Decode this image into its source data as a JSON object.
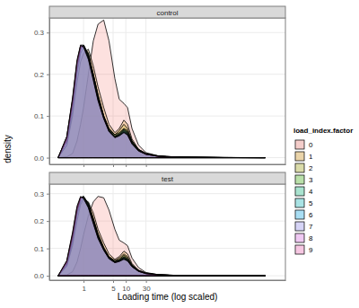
{
  "chart_data": [
    {
      "type": "area",
      "title": "control",
      "y_label": "density",
      "legend_title": "load_index.factor",
      "x": [
        0.25,
        0.4,
        0.55,
        0.7,
        0.85,
        1,
        1.3,
        1.7,
        2.2,
        3,
        4,
        5.5,
        7,
        9,
        11,
        14,
        20,
        30,
        60,
        200,
        2000,
        20000
      ],
      "xlim": [
        0.155,
        60000
      ],
      "xticks": [
        1,
        5,
        10,
        30
      ],
      "ylim": [
        -0.016,
        0.335
      ],
      "yticks": [
        {
          "value": 0,
          "label": "0.0"
        },
        {
          "value": 0.1,
          "label": "0.1"
        },
        {
          "value": 0.2,
          "label": "0.2"
        },
        {
          "value": 0.3,
          "label": "0.3"
        }
      ],
      "log": "x",
      "grid": true,
      "legend": "right",
      "tick_labels": "y",
      "series": [
        {
          "name": "0",
          "color": "#F8766D",
          "values": [
            0,
            0.002,
            0.01,
            0.04,
            0.08,
            0.12,
            0.2,
            0.28,
            0.32,
            0.33,
            0.28,
            0.19,
            0.14,
            0.13,
            0.12,
            0.07,
            0.03,
            0.012,
            0.004,
            0.001,
            0.0003,
            0
          ]
        },
        {
          "name": "1",
          "color": "#D89000",
          "values": [
            0,
            0.03,
            0.1,
            0.18,
            0.23,
            0.25,
            0.26,
            0.22,
            0.17,
            0.12,
            0.08,
            0.06,
            0.07,
            0.09,
            0.08,
            0.045,
            0.02,
            0.01,
            0.004,
            0.001,
            0.0003,
            0
          ]
        },
        {
          "name": "2",
          "color": "#A3A500",
          "values": [
            0,
            0.03,
            0.11,
            0.2,
            0.25,
            0.265,
            0.25,
            0.2,
            0.15,
            0.1,
            0.07,
            0.055,
            0.065,
            0.08,
            0.07,
            0.04,
            0.02,
            0.01,
            0.004,
            0.001,
            0.0003,
            0
          ]
        },
        {
          "name": "3",
          "color": "#39B600",
          "values": [
            0,
            0.04,
            0.12,
            0.21,
            0.26,
            0.27,
            0.25,
            0.2,
            0.15,
            0.1,
            0.07,
            0.055,
            0.06,
            0.07,
            0.065,
            0.04,
            0.02,
            0.009,
            0.003,
            0.001,
            0.0002,
            0
          ]
        },
        {
          "name": "4",
          "color": "#00BF7D",
          "values": [
            0,
            0.04,
            0.13,
            0.22,
            0.26,
            0.27,
            0.245,
            0.2,
            0.15,
            0.1,
            0.068,
            0.052,
            0.058,
            0.068,
            0.062,
            0.038,
            0.018,
            0.009,
            0.003,
            0.001,
            0.0002,
            0
          ]
        },
        {
          "name": "5",
          "color": "#00BFC4",
          "values": [
            0,
            0.04,
            0.13,
            0.22,
            0.265,
            0.27,
            0.245,
            0.195,
            0.145,
            0.098,
            0.066,
            0.05,
            0.056,
            0.066,
            0.06,
            0.036,
            0.018,
            0.008,
            0.003,
            0.001,
            0.0002,
            0
          ]
        },
        {
          "name": "6",
          "color": "#00B0F6",
          "values": [
            0,
            0.045,
            0.135,
            0.225,
            0.265,
            0.268,
            0.24,
            0.19,
            0.14,
            0.096,
            0.065,
            0.05,
            0.055,
            0.064,
            0.058,
            0.035,
            0.017,
            0.008,
            0.003,
            0.001,
            0.0002,
            0
          ]
        },
        {
          "name": "7",
          "color": "#9590FF",
          "values": [
            0,
            0.05,
            0.14,
            0.23,
            0.27,
            0.27,
            0.24,
            0.19,
            0.14,
            0.095,
            0.064,
            0.049,
            0.054,
            0.062,
            0.056,
            0.034,
            0.017,
            0.008,
            0.003,
            0.001,
            0.0002,
            0
          ]
        },
        {
          "name": "8",
          "color": "#E76BF3",
          "values": [
            0,
            0.05,
            0.14,
            0.23,
            0.268,
            0.266,
            0.238,
            0.188,
            0.138,
            0.094,
            0.063,
            0.048,
            0.053,
            0.061,
            0.055,
            0.033,
            0.016,
            0.008,
            0.003,
            0.001,
            0.0002,
            0
          ]
        },
        {
          "name": "9",
          "color": "#FF62BC",
          "values": [
            0,
            0.05,
            0.145,
            0.235,
            0.27,
            0.265,
            0.235,
            0.185,
            0.136,
            0.093,
            0.062,
            0.048,
            0.052,
            0.06,
            0.054,
            0.033,
            0.016,
            0.008,
            0.003,
            0.001,
            0.0002,
            0
          ]
        }
      ]
    },
    {
      "type": "area",
      "title": "test",
      "x_label": "Loading time (log scaled)",
      "x": [
        0.25,
        0.4,
        0.55,
        0.7,
        0.85,
        1,
        1.3,
        1.7,
        2.2,
        3,
        4,
        5.5,
        7,
        9,
        11,
        14,
        20,
        30,
        60,
        200,
        2000,
        20000
      ],
      "xlim": [
        0.155,
        60000
      ],
      "xticks": [
        1,
        5,
        10,
        30
      ],
      "ylim": [
        -0.016,
        0.335
      ],
      "yticks": [
        {
          "value": 0,
          "label": "0.0"
        },
        {
          "value": 0.1,
          "label": "0.1"
        },
        {
          "value": 0.2,
          "label": "0.2"
        },
        {
          "value": 0.3,
          "label": "0.3"
        }
      ],
      "log": "x",
      "grid": true,
      "series": [
        {
          "name": "0",
          "color": "#F8766D",
          "values": [
            0,
            0.003,
            0.015,
            0.05,
            0.1,
            0.15,
            0.22,
            0.27,
            0.29,
            0.285,
            0.24,
            0.17,
            0.13,
            0.12,
            0.11,
            0.065,
            0.03,
            0.012,
            0.004,
            0.001,
            0.0003,
            0
          ]
        },
        {
          "name": "1",
          "color": "#D89000",
          "values": [
            0,
            0.035,
            0.11,
            0.2,
            0.26,
            0.28,
            0.27,
            0.23,
            0.17,
            0.12,
            0.08,
            0.06,
            0.07,
            0.09,
            0.08,
            0.045,
            0.02,
            0.01,
            0.004,
            0.001,
            0.0003,
            0
          ]
        },
        {
          "name": "2",
          "color": "#A3A500",
          "values": [
            0,
            0.035,
            0.12,
            0.22,
            0.27,
            0.285,
            0.265,
            0.21,
            0.155,
            0.105,
            0.07,
            0.055,
            0.065,
            0.08,
            0.07,
            0.04,
            0.02,
            0.01,
            0.004,
            0.001,
            0.0003,
            0
          ]
        },
        {
          "name": "3",
          "color": "#39B600",
          "values": [
            0,
            0.04,
            0.13,
            0.23,
            0.28,
            0.29,
            0.265,
            0.21,
            0.15,
            0.1,
            0.07,
            0.055,
            0.06,
            0.075,
            0.065,
            0.04,
            0.02,
            0.009,
            0.003,
            0.001,
            0.0002,
            0
          ]
        },
        {
          "name": "4",
          "color": "#00BF7D",
          "values": [
            0,
            0.045,
            0.14,
            0.235,
            0.28,
            0.29,
            0.26,
            0.205,
            0.15,
            0.1,
            0.068,
            0.052,
            0.058,
            0.07,
            0.062,
            0.038,
            0.018,
            0.009,
            0.003,
            0.001,
            0.0002,
            0
          ]
        },
        {
          "name": "5",
          "color": "#00BFC4",
          "values": [
            0,
            0.045,
            0.14,
            0.24,
            0.285,
            0.29,
            0.26,
            0.2,
            0.145,
            0.098,
            0.066,
            0.05,
            0.056,
            0.068,
            0.06,
            0.036,
            0.018,
            0.008,
            0.003,
            0.001,
            0.0002,
            0
          ]
        },
        {
          "name": "6",
          "color": "#00B0F6",
          "values": [
            0,
            0.05,
            0.145,
            0.24,
            0.285,
            0.288,
            0.255,
            0.198,
            0.142,
            0.096,
            0.065,
            0.05,
            0.055,
            0.066,
            0.058,
            0.035,
            0.017,
            0.008,
            0.003,
            0.001,
            0.0002,
            0
          ]
        },
        {
          "name": "7",
          "color": "#9590FF",
          "values": [
            0,
            0.05,
            0.15,
            0.245,
            0.287,
            0.286,
            0.252,
            0.195,
            0.14,
            0.095,
            0.064,
            0.049,
            0.054,
            0.064,
            0.056,
            0.034,
            0.017,
            0.008,
            0.003,
            0.001,
            0.0002,
            0
          ]
        },
        {
          "name": "8",
          "color": "#E76BF3",
          "values": [
            0,
            0.055,
            0.155,
            0.25,
            0.288,
            0.284,
            0.25,
            0.192,
            0.138,
            0.094,
            0.063,
            0.048,
            0.053,
            0.062,
            0.055,
            0.033,
            0.016,
            0.008,
            0.003,
            0.001,
            0.0002,
            0
          ]
        },
        {
          "name": "9",
          "color": "#FF62BC",
          "values": [
            0,
            0.055,
            0.16,
            0.255,
            0.29,
            0.282,
            0.248,
            0.19,
            0.136,
            0.093,
            0.062,
            0.048,
            0.052,
            0.06,
            0.054,
            0.033,
            0.016,
            0.008,
            0.003,
            0.001,
            0.0002,
            0
          ]
        }
      ]
    }
  ]
}
